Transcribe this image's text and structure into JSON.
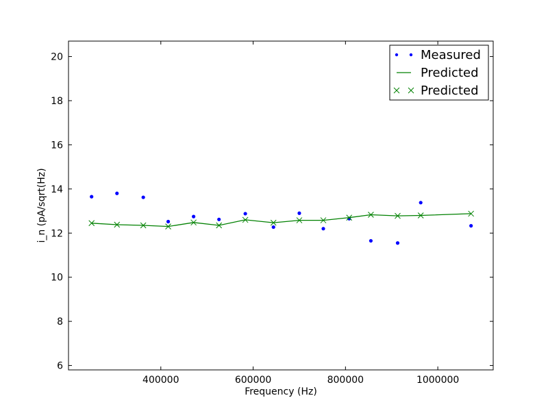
{
  "chart_data": {
    "type": "scatter",
    "title": "",
    "xlabel": "Frequency (Hz)",
    "ylabel": "i_n (pA/sqrt(Hz)",
    "xlim": [
      200000,
      1120000
    ],
    "ylim": [
      5.8,
      20.7
    ],
    "x_ticks": [
      400000,
      600000,
      800000,
      1000000
    ],
    "y_ticks": [
      6,
      8,
      10,
      12,
      14,
      16,
      18,
      20
    ],
    "x_tick_labels": [
      "400000",
      "600000",
      "800000",
      "1000000"
    ],
    "y_tick_labels": [
      "6",
      "8",
      "10",
      "12",
      "14",
      "16",
      "18",
      "20"
    ],
    "grid": false,
    "legend_position": "top-right",
    "series": [
      {
        "name": "Measured",
        "style": "dots",
        "color": "#0000ff",
        "x": [
          250000,
          305000,
          362000,
          416000,
          471000,
          526000,
          583000,
          644000,
          700000,
          752000,
          808000,
          855000,
          913000,
          963000,
          1072000
        ],
        "y": [
          13.65,
          13.8,
          13.62,
          12.52,
          12.75,
          12.62,
          12.88,
          12.27,
          12.9,
          12.2,
          12.65,
          11.65,
          11.55,
          13.38,
          12.33
        ]
      },
      {
        "name": "Predicted",
        "style": "line",
        "color": "#008000",
        "x": [
          250000,
          305000,
          362000,
          416000,
          471000,
          526000,
          583000,
          644000,
          700000,
          752000,
          808000,
          855000,
          913000,
          963000,
          1072000
        ],
        "y": [
          12.45,
          12.38,
          12.35,
          12.3,
          12.48,
          12.35,
          12.6,
          12.47,
          12.58,
          12.58,
          12.7,
          12.83,
          12.78,
          12.8,
          12.88
        ]
      },
      {
        "name": "Predicted",
        "style": "x-markers",
        "color": "#008000",
        "x": [
          250000,
          305000,
          362000,
          416000,
          471000,
          526000,
          583000,
          644000,
          700000,
          752000,
          808000,
          855000,
          913000,
          963000,
          1072000
        ],
        "y": [
          12.45,
          12.38,
          12.35,
          12.3,
          12.48,
          12.35,
          12.6,
          12.47,
          12.58,
          12.58,
          12.7,
          12.83,
          12.78,
          12.8,
          12.88
        ]
      }
    ]
  }
}
